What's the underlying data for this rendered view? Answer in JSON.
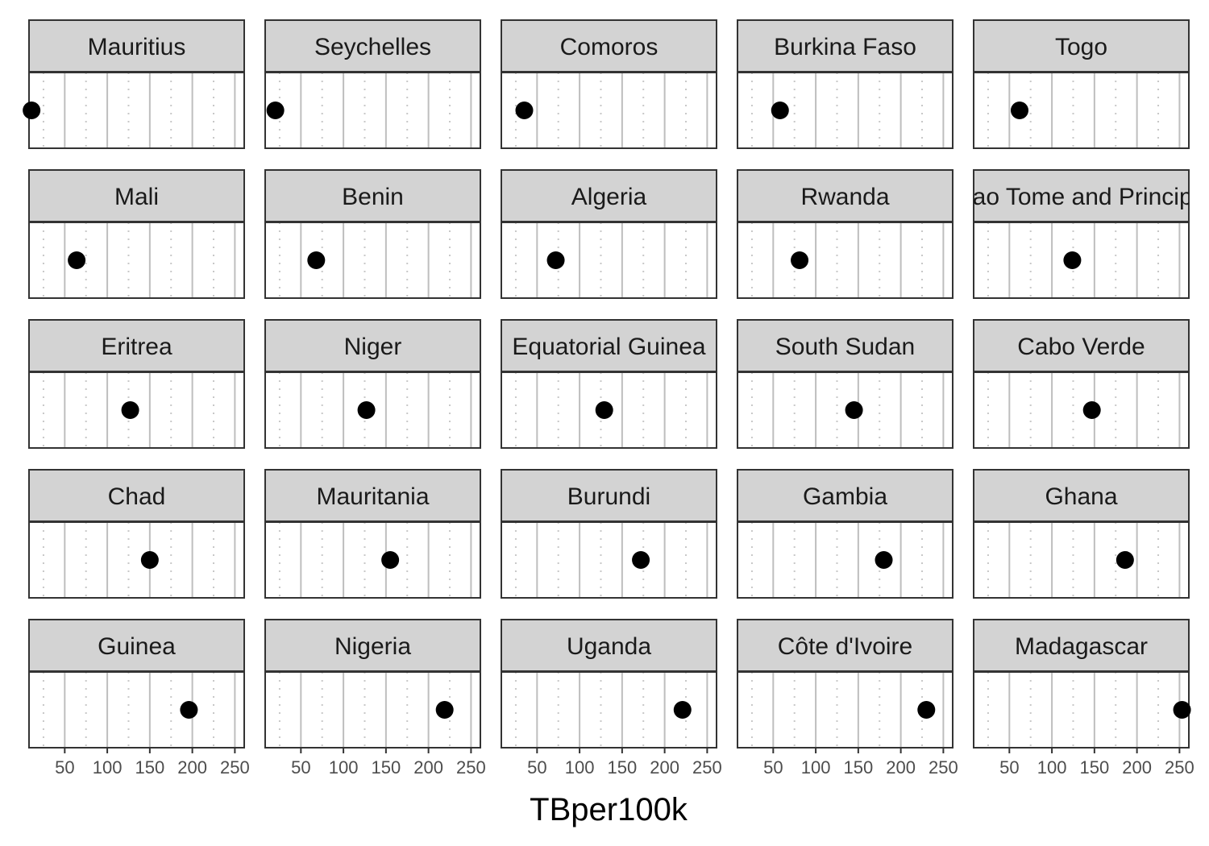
{
  "chart_data": {
    "type": "scatter",
    "facet_layout": "5 columns x 5 rows",
    "xlabel": "TBper100k",
    "ylabel": "",
    "xlim": [
      8,
      261
    ],
    "x_ticks": [
      50,
      100,
      150,
      200,
      250
    ],
    "x_tick_labels": [
      "50",
      "100",
      "150",
      "200",
      "250"
    ],
    "grid": "major solid, minor dotted, vertical only",
    "colors": {
      "strip_fill": "#d3d3d3",
      "panel_border": "#333333",
      "major_grid": "#bebebe",
      "minor_grid": "#c8c8c8",
      "point": "#000000"
    },
    "panels": [
      {
        "country": "Mauritius",
        "x": 11
      },
      {
        "country": "Seychelles",
        "x": 20
      },
      {
        "country": "Comoros",
        "x": 35
      },
      {
        "country": "Burkina Faso",
        "x": 58
      },
      {
        "country": "Togo",
        "x": 62
      },
      {
        "country": "Mali",
        "x": 64
      },
      {
        "country": "Benin",
        "x": 68
      },
      {
        "country": "Algeria",
        "x": 72
      },
      {
        "country": "Rwanda",
        "x": 81
      },
      {
        "country": "Sao Tome and Principe",
        "x": 124
      },
      {
        "country": "Eritrea",
        "x": 127
      },
      {
        "country": "Niger",
        "x": 127
      },
      {
        "country": "Equatorial Guinea",
        "x": 129
      },
      {
        "country": "South Sudan",
        "x": 145
      },
      {
        "country": "Cabo Verde",
        "x": 147
      },
      {
        "country": "Chad",
        "x": 150
      },
      {
        "country": "Mauritania",
        "x": 155
      },
      {
        "country": "Burundi",
        "x": 172
      },
      {
        "country": "Gambia",
        "x": 180
      },
      {
        "country": "Ghana",
        "x": 186
      },
      {
        "country": "Guinea",
        "x": 196
      },
      {
        "country": "Nigeria",
        "x": 219
      },
      {
        "country": "Uganda",
        "x": 221
      },
      {
        "country": "Côte d'Ivoire",
        "x": 230
      },
      {
        "country": "Madagascar",
        "x": 253
      }
    ]
  }
}
